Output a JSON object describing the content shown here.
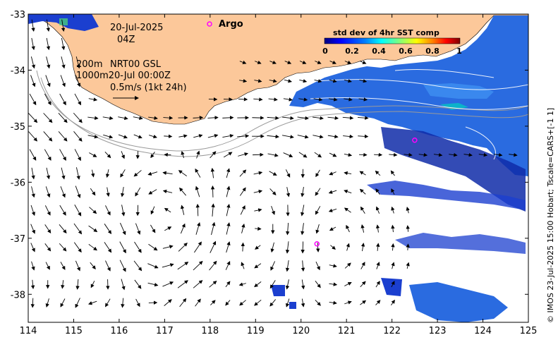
{
  "map": {
    "date_line1": "20-Jul-2025",
    "date_line2": "04Z",
    "legend_argo": "Argo",
    "iso_line": "200m",
    "product_line": "NRT00 GSL",
    "depth_line": "1000m20-Jul 00:00Z",
    "scale_line": "0.5m/s (1kt 24h)",
    "colorbar": {
      "title": "std dev of 4hr SST comp",
      "ticks": [
        "0",
        "0.2",
        "0.4",
        "0.6",
        "0.8",
        "1"
      ],
      "colors": [
        "#00007f",
        "#0000ff",
        "#007fff",
        "#00ffff",
        "#7fff7f",
        "#ffff00",
        "#ff7f00",
        "#ff0000",
        "#7f0000"
      ]
    },
    "credit": "© IMOS 23-Jul-2025 15:00 Hobart; Tscale=CARS+[-1 1]",
    "x_ticks": [
      "114",
      "115",
      "116",
      "117",
      "118",
      "119",
      "120",
      "121",
      "122",
      "123",
      "124",
      "125"
    ],
    "y_ticks": [
      "-33",
      "-34",
      "-35",
      "-36",
      "-37",
      "-38"
    ],
    "lon_range": [
      114,
      125
    ],
    "lat_range": [
      -38.5,
      -33
    ],
    "argo_floats": [
      {
        "lon": 120.35,
        "lat": -37.1
      },
      {
        "lon": 122.5,
        "lat": -35.25
      }
    ],
    "colors": {
      "land": "#fcc89a",
      "ocean": "#ffffff",
      "argo": "#ff00ff",
      "arrow": "#000000"
    }
  }
}
